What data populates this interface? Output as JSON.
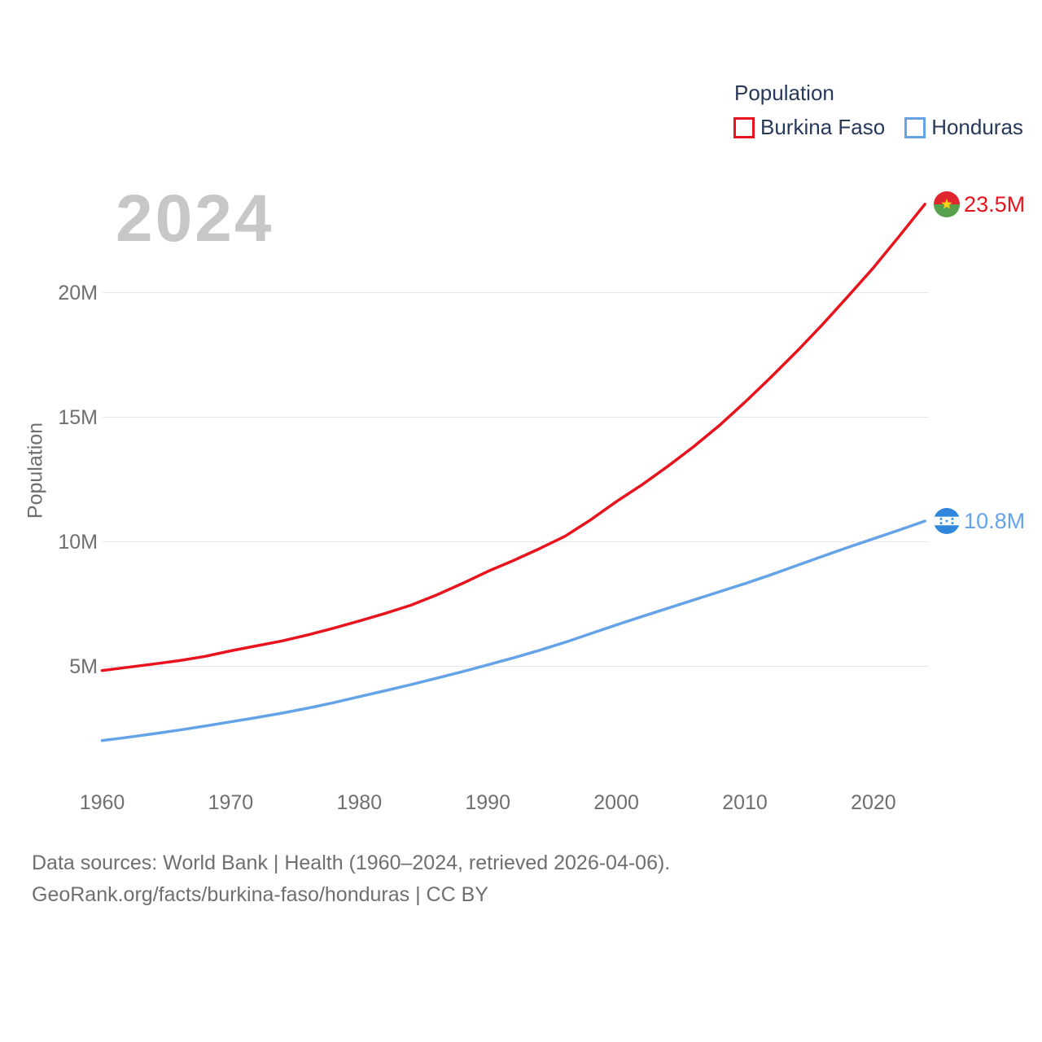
{
  "chart": {
    "watermark": "2024",
    "y_axis_title": "Population"
  },
  "legend": {
    "title": "Population",
    "items": [
      {
        "label": "Burkina Faso",
        "color": "#e8131c"
      },
      {
        "label": "Honduras",
        "color": "#64a3e8"
      }
    ]
  },
  "chart_data": {
    "type": "line",
    "title": "Population",
    "xlabel": "",
    "ylabel": "Population",
    "x_ticks": [
      1960,
      1970,
      1980,
      1990,
      2000,
      2010,
      2020
    ],
    "y_ticks": [
      {
        "value": 5,
        "label": "5M"
      },
      {
        "value": 10,
        "label": "10M"
      },
      {
        "value": 15,
        "label": "15M"
      },
      {
        "value": 20,
        "label": "20M"
      }
    ],
    "xlim": [
      1960,
      2024
    ],
    "ylim": [
      1,
      25
    ],
    "grid": "horizontal",
    "legend_position": "top-right",
    "series": [
      {
        "name": "Burkina Faso",
        "color": "#e8131c",
        "end_label": "23.5M",
        "end_value_millions": 23.5,
        "flag": "burkina-faso",
        "points": [
          [
            1960,
            4.83
          ],
          [
            1962,
            4.96
          ],
          [
            1964,
            5.09
          ],
          [
            1966,
            5.23
          ],
          [
            1968,
            5.4
          ],
          [
            1970,
            5.62
          ],
          [
            1972,
            5.82
          ],
          [
            1974,
            6.02
          ],
          [
            1976,
            6.26
          ],
          [
            1978,
            6.53
          ],
          [
            1980,
            6.82
          ],
          [
            1982,
            7.12
          ],
          [
            1984,
            7.45
          ],
          [
            1986,
            7.86
          ],
          [
            1988,
            8.32
          ],
          [
            1990,
            8.81
          ],
          [
            1992,
            9.25
          ],
          [
            1994,
            9.72
          ],
          [
            1996,
            10.22
          ],
          [
            1998,
            10.88
          ],
          [
            2000,
            11.61
          ],
          [
            2002,
            12.29
          ],
          [
            2004,
            13.03
          ],
          [
            2006,
            13.81
          ],
          [
            2008,
            14.66
          ],
          [
            2010,
            15.6
          ],
          [
            2012,
            16.59
          ],
          [
            2014,
            17.62
          ],
          [
            2016,
            18.7
          ],
          [
            2018,
            19.84
          ],
          [
            2020,
            21.0
          ],
          [
            2022,
            22.26
          ],
          [
            2024,
            23.55
          ]
        ]
      },
      {
        "name": "Honduras",
        "color": "#64a3e8",
        "end_label": "10.8M",
        "end_value_millions": 10.8,
        "flag": "honduras",
        "points": [
          [
            1960,
            2.02
          ],
          [
            1962,
            2.15
          ],
          [
            1964,
            2.29
          ],
          [
            1966,
            2.44
          ],
          [
            1968,
            2.6
          ],
          [
            1970,
            2.77
          ],
          [
            1972,
            2.94
          ],
          [
            1974,
            3.12
          ],
          [
            1976,
            3.32
          ],
          [
            1978,
            3.54
          ],
          [
            1980,
            3.78
          ],
          [
            1982,
            4.02
          ],
          [
            1984,
            4.26
          ],
          [
            1986,
            4.52
          ],
          [
            1988,
            4.78
          ],
          [
            1990,
            5.06
          ],
          [
            1992,
            5.34
          ],
          [
            1994,
            5.64
          ],
          [
            1996,
            5.96
          ],
          [
            1998,
            6.31
          ],
          [
            2000,
            6.66
          ],
          [
            2002,
            7.0
          ],
          [
            2004,
            7.33
          ],
          [
            2006,
            7.66
          ],
          [
            2008,
            7.99
          ],
          [
            2010,
            8.32
          ],
          [
            2012,
            8.67
          ],
          [
            2014,
            9.04
          ],
          [
            2016,
            9.41
          ],
          [
            2018,
            9.77
          ],
          [
            2020,
            10.12
          ],
          [
            2022,
            10.47
          ],
          [
            2024,
            10.83
          ]
        ]
      }
    ]
  },
  "footer": {
    "line1": "Data sources: World Bank | Health (1960–2024, retrieved 2026-04-06).",
    "line2": "GeoRank.org/facts/burkina-faso/honduras | CC BY"
  }
}
